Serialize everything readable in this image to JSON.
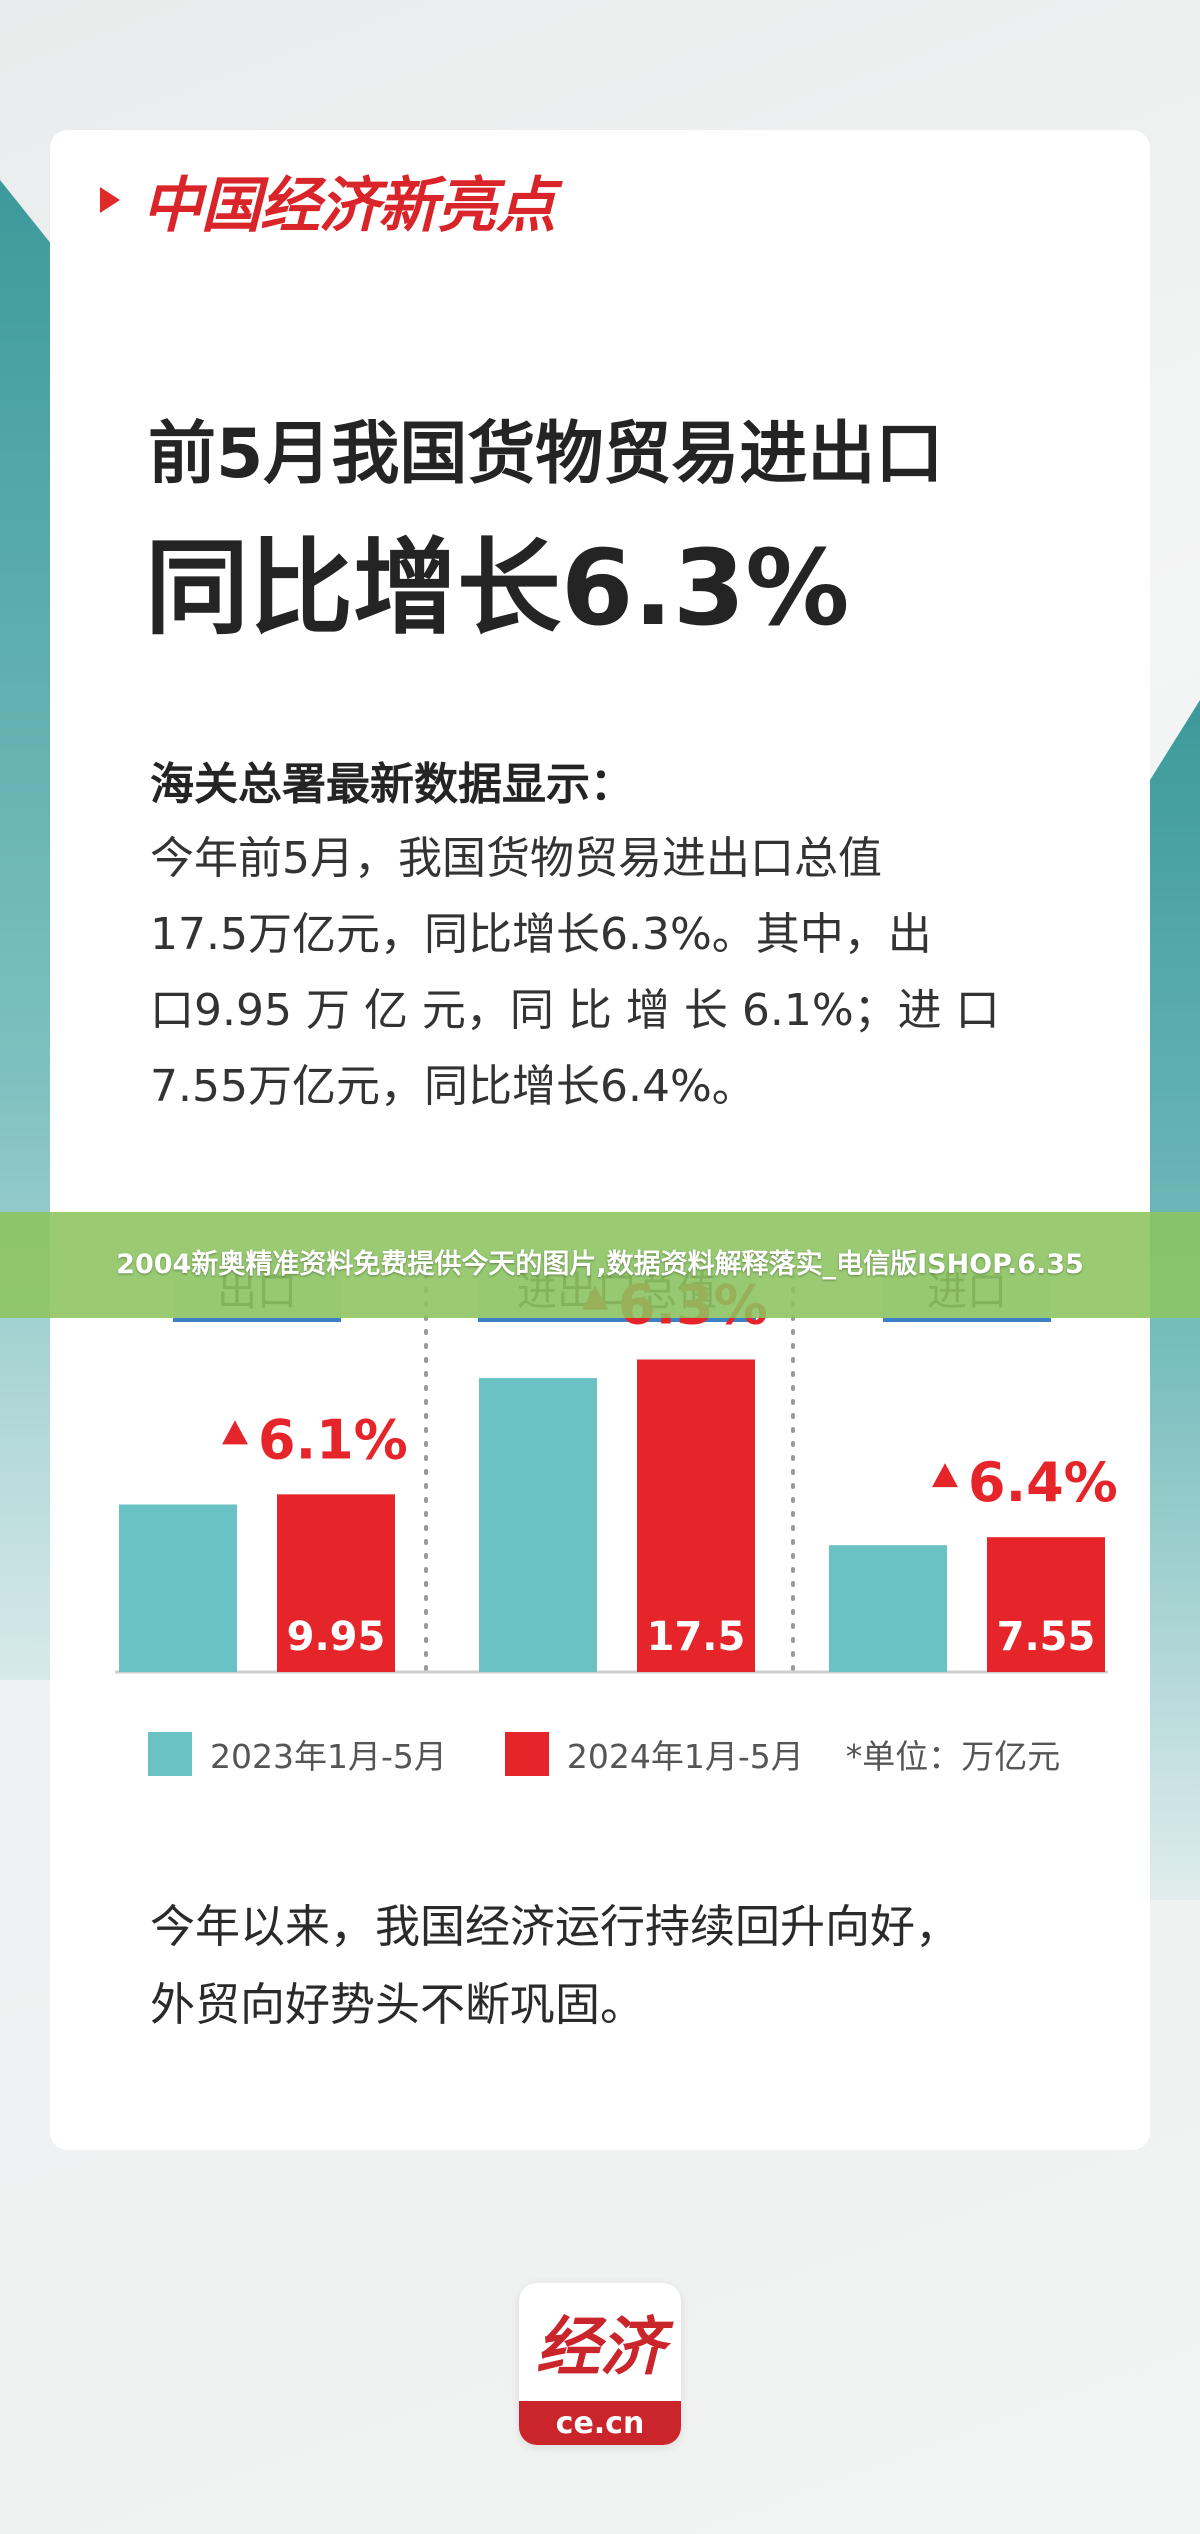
{
  "brand": {
    "title": "中国经济新亮点"
  },
  "headline": {
    "line1": "前5月我国货物贸易进出口",
    "line2": "同比增长6.3%"
  },
  "body": {
    "sub_heading": "海关总署最新数据显示：",
    "lines": [
      "今年前5月，我国货物贸易进出口总值",
      "17.5万亿元，同比增长6.3%。其中，出",
      "口9.95 万 亿 元，同 比 增 长 6.1%；进 口",
      "7.55万亿元，同比增长6.4%。"
    ]
  },
  "overlay": {
    "text": "2004新奥精准资料免费提供今天的图片,数据资料解释落实_电信版ISHOP.6.35"
  },
  "chart_data": {
    "type": "bar",
    "categories": [
      "出口",
      "进出口总值",
      "进口"
    ],
    "series": [
      {
        "name": "2023年1月-5月",
        "color": "#6ac2c4",
        "values": [
          9.38,
          16.46,
          7.1
        ]
      },
      {
        "name": "2024年1月-5月",
        "color": "#e5252a",
        "values": [
          9.95,
          17.5,
          7.55
        ],
        "value_labels": [
          "9.95",
          "17.5",
          "7.55"
        ]
      }
    ],
    "growth_labels": [
      "6.1%",
      "6.3%",
      "6.4%"
    ],
    "unit_note": "*单位：万亿元",
    "ylim": [
      0,
      28
    ],
    "grid": false,
    "legend_position": "bottom",
    "colors": {
      "category_label_bg": "#dfe8ee",
      "category_label_line": "#3b7fc4",
      "growth_text": "#e5252a",
      "divider": "#9a9a9a",
      "baseline": "#cfcfcf"
    }
  },
  "closing": {
    "lines": [
      "今年以来，我国经济运行持续回升向好，",
      "外贸向好势头不断巩固。"
    ]
  },
  "logo": {
    "mark": "经济",
    "domain": "ce.cn"
  }
}
